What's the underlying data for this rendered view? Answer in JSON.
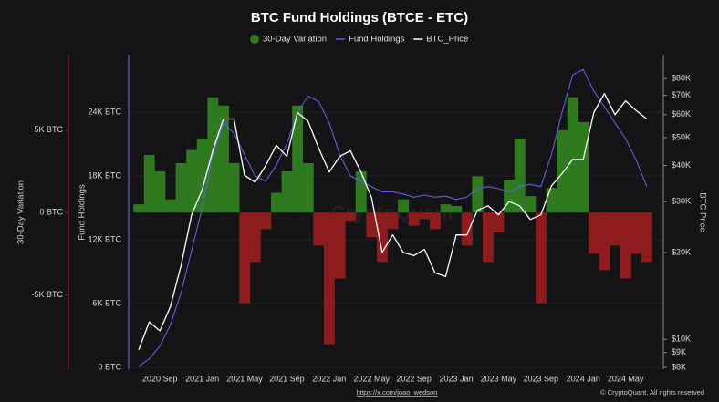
{
  "chart_data": {
    "type": "combo",
    "title": "BTC Fund Holdings (BTCE - ETC)",
    "watermark": "CryptoQuant",
    "source_link": "https://x.com/joao_wedson",
    "copyright": "© CryptoQuant. All rights reserved",
    "y3_label": "30-Day Variation",
    "y_label": "Fund Holdings",
    "y2_label": "BTC Price",
    "categories": [
      null,
      null,
      "2020 Sep",
      null,
      null,
      null,
      "2021 Jan",
      null,
      null,
      null,
      "2021 May",
      null,
      null,
      null,
      "2021 Sep",
      null,
      null,
      null,
      "2022 Jan",
      null,
      null,
      null,
      "2022 May",
      null,
      null,
      null,
      "2022 Sep",
      null,
      null,
      null,
      "2023 Jan",
      null,
      null,
      null,
      "2023 May",
      null,
      null,
      null,
      "2023 Sep",
      null,
      null,
      null,
      "2024 Jan",
      null,
      null,
      null,
      "2024 May",
      null,
      null
    ],
    "ylim": [
      0,
      28800
    ],
    "yticks": [
      {
        "value": 0,
        "label": "0 BTC"
      },
      {
        "value": 6000,
        "label": "6K BTC"
      },
      {
        "value": 12000,
        "label": "12K BTC"
      },
      {
        "value": 18000,
        "label": "18K BTC"
      },
      {
        "value": 24000,
        "label": "24K BTC"
      }
    ],
    "y2lim": [
      8000,
      92000
    ],
    "y2_log": true,
    "y2ticks": [
      {
        "value": 8000,
        "label": "$8K"
      },
      {
        "value": 9000,
        "label": "$9K"
      },
      {
        "value": 10000,
        "label": "$10K"
      },
      {
        "value": 20000,
        "label": "$20K"
      },
      {
        "value": 30000,
        "label": "$30K"
      },
      {
        "value": 40000,
        "label": "$40K"
      },
      {
        "value": 50000,
        "label": "$50K"
      },
      {
        "value": 60000,
        "label": "$60K"
      },
      {
        "value": 70000,
        "label": "$70K"
      },
      {
        "value": 80000,
        "label": "$80K"
      }
    ],
    "y3lim": [
      -9400,
      9200
    ],
    "y3ticks": [
      {
        "value": -5000,
        "label": "-5K BTC"
      },
      {
        "value": 0,
        "label": "0 BTC"
      },
      {
        "value": 5000,
        "label": "5K BTC"
      }
    ],
    "grid": true,
    "series": [
      {
        "name": "30-Day Variation",
        "type": "area",
        "axis": "y3",
        "color": "#2f7a1e",
        "negative_color": "#8e1c1c",
        "values": [
          500,
          3500,
          2500,
          800,
          3000,
          3800,
          4500,
          7000,
          6500,
          3000,
          -5500,
          -3000,
          -1000,
          1200,
          2500,
          6500,
          3000,
          -2000,
          -8000,
          -4000,
          -500,
          2500,
          -1500,
          -3000,
          -1000,
          800,
          -800,
          -400,
          -1000,
          500,
          400,
          -2000,
          2200,
          -3000,
          -1200,
          2000,
          4500,
          1000,
          -5500,
          1500,
          5000,
          7000,
          5500,
          -2500,
          -3500,
          -2000,
          -4000,
          -2500,
          -3000
        ]
      },
      {
        "name": "Fund Holdings",
        "type": "line",
        "axis": "y",
        "color": "#5d5ee0",
        "values": [
          100,
          800,
          2000,
          4000,
          7000,
          11000,
          15000,
          20000,
          23000,
          22000,
          20000,
          18000,
          17500,
          19000,
          21000,
          24000,
          25500,
          25000,
          23000,
          20000,
          18000,
          17500,
          17000,
          16500,
          16500,
          16300,
          16000,
          16200,
          16000,
          16100,
          15800,
          16000,
          16800,
          17000,
          16800,
          16500,
          17000,
          17200,
          17000,
          20000,
          24000,
          27500,
          28000,
          26000,
          24500,
          23000,
          21500,
          19500,
          17000
        ]
      },
      {
        "name": "BTC_Price",
        "type": "line",
        "axis": "y2",
        "color": "#ffffff",
        "values": [
          9200,
          11500,
          10700,
          13000,
          18000,
          27000,
          33000,
          45000,
          58000,
          58000,
          37000,
          35000,
          40000,
          47000,
          43000,
          61000,
          57000,
          46000,
          38000,
          43000,
          45000,
          38000,
          31000,
          20000,
          23000,
          20000,
          19500,
          20500,
          17000,
          16500,
          23000,
          23000,
          28000,
          29000,
          27000,
          30000,
          29000,
          26000,
          27000,
          34000,
          37500,
          42000,
          42000,
          61000,
          71000,
          60000,
          67000,
          62000,
          58000
        ]
      }
    ]
  }
}
